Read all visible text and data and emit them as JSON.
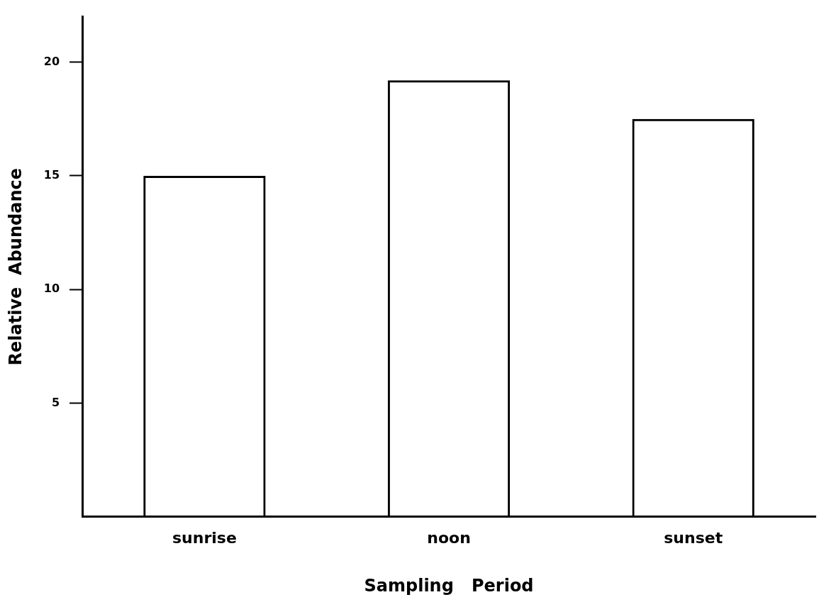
{
  "chart_data": {
    "type": "bar",
    "xlabel": "Sampling   Period",
    "ylabel": "Relative  Abundance",
    "categories": [
      "sunrise",
      "noon",
      "sunset"
    ],
    "values": [
      15.0,
      19.2,
      17.5
    ],
    "color": "#000000",
    "ylim": [
      0,
      22
    ],
    "yticks": [
      5,
      10,
      15,
      20
    ],
    "grid": false,
    "legend": false
  }
}
